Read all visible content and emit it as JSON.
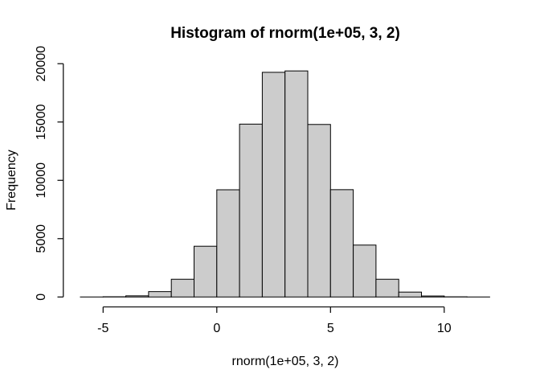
{
  "chart_data": {
    "type": "bar",
    "subtype": "histogram",
    "title": "Histogram of rnorm(1e+05, 3, 2)",
    "xlabel": "rnorm(1e+05, 3, 2)",
    "ylabel": "Frequency",
    "bin_edges": [
      -6,
      -5,
      -4,
      -3,
      -2,
      -1,
      0,
      1,
      2,
      3,
      4,
      5,
      6,
      7,
      8,
      9,
      10,
      11,
      12
    ],
    "counts": [
      3,
      20,
      100,
      460,
      1520,
      4350,
      9190,
      14820,
      19260,
      19380,
      14790,
      9200,
      4450,
      1520,
      420,
      85,
      15,
      3
    ],
    "x_ticks": [
      -5,
      0,
      5,
      10
    ],
    "y_ticks": [
      0,
      5000,
      10000,
      15000,
      20000
    ],
    "xlim": [
      -6,
      12
    ],
    "ylim": [
      0,
      20000
    ],
    "grid": false,
    "legend": false,
    "bar_fill": "#cccccc",
    "bar_stroke": "#000000",
    "axis_color": "#000000",
    "background": "#ffffff"
  }
}
